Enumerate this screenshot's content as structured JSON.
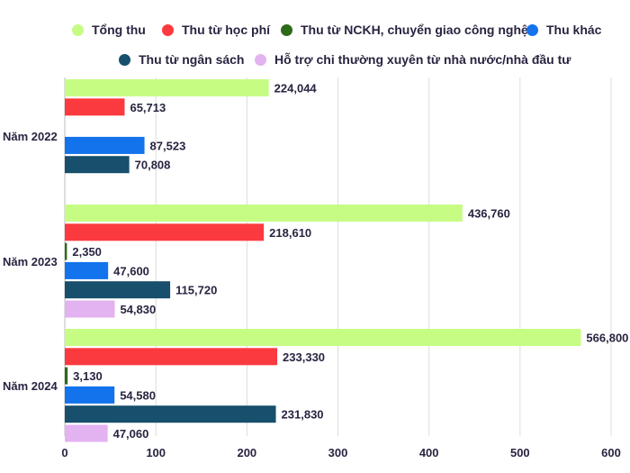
{
  "chart_data": {
    "type": "bar",
    "orientation": "horizontal",
    "categories": [
      "Năm 2022",
      "Năm 2023",
      "Năm 2024"
    ],
    "series": [
      {
        "name": "Tổng thu",
        "color": "#c6fc84",
        "values": [
          224044,
          436760,
          566800
        ],
        "labels": [
          "224,044",
          "436,760",
          "566,800"
        ]
      },
      {
        "name": "Thu từ học phí",
        "color": "#fb3a3f",
        "values": [
          65713,
          218610,
          233330
        ],
        "labels": [
          "65,713",
          "218,610",
          "233,330"
        ]
      },
      {
        "name": "Thu từ NCKH, chuyển giao công nghệ",
        "color": "#2c6b18",
        "values": [
          null,
          2350,
          3130
        ],
        "labels": [
          "",
          "2,350",
          "3,130"
        ]
      },
      {
        "name": "Thu khác",
        "color": "#1273ec",
        "values": [
          87523,
          47600,
          54580
        ],
        "labels": [
          "87,523",
          "47,600",
          "54,580"
        ]
      },
      {
        "name": "Thu từ ngân sách",
        "color": "#174f6c",
        "values": [
          70808,
          115720,
          231830
        ],
        "labels": [
          "70,808",
          "115,720",
          "231,830"
        ]
      },
      {
        "name": "Hỗ trợ chi thường xuyên từ nhà nước/nhà đầu tư",
        "color": "#e3b2f0",
        "values": [
          null,
          54830,
          47060
        ],
        "labels": [
          "",
          "54,830",
          "47,060"
        ]
      }
    ],
    "x_ticks": [
      "0",
      "100",
      "200",
      "300",
      "400",
      "500",
      "600"
    ],
    "xlim": [
      0,
      600000
    ],
    "grid": true,
    "legend_position": "top"
  }
}
